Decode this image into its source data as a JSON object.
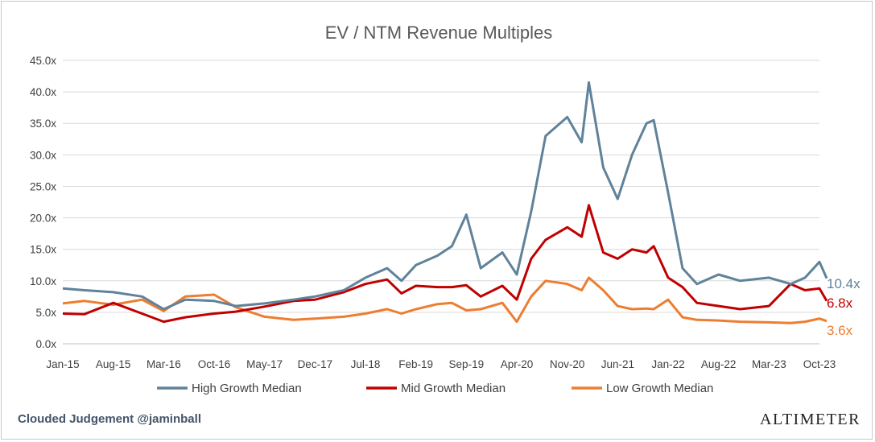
{
  "colors": {
    "high": "#60829a",
    "mid": "#c00000",
    "low": "#ed7d31",
    "grid": "#d9d9d9"
  },
  "footer": {
    "source": "Clouded Judgement @jaminball",
    "brand": "Altimeter"
  },
  "chart_data": {
    "type": "line",
    "title": "EV / NTM Revenue Multiples",
    "xlabel": "",
    "ylabel": "",
    "ylim": [
      0,
      45
    ],
    "y_ticks": [
      "0.0x",
      "5.0x",
      "10.0x",
      "15.0x",
      "20.0x",
      "25.0x",
      "30.0x",
      "35.0x",
      "40.0x",
      "45.0x"
    ],
    "x_ticks": [
      "Jan-15",
      "Aug-15",
      "Mar-16",
      "Oct-16",
      "May-17",
      "Dec-17",
      "Jul-18",
      "Feb-19",
      "Sep-19",
      "Apr-20",
      "Nov-20",
      "Jun-21",
      "Jan-22",
      "Aug-22",
      "Mar-23",
      "Oct-23"
    ],
    "grid": "horizontal",
    "legend": "bottom",
    "x": [
      "Jan-15",
      "Apr-15",
      "Aug-15",
      "Dec-15",
      "Mar-16",
      "Jun-16",
      "Oct-16",
      "Jan-17",
      "May-17",
      "Sep-17",
      "Dec-17",
      "Apr-18",
      "Jul-18",
      "Oct-18",
      "Dec-18",
      "Feb-19",
      "May-19",
      "Jul-19",
      "Sep-19",
      "Nov-19",
      "Feb-20",
      "Apr-20",
      "Jun-20",
      "Aug-20",
      "Nov-20",
      "Jan-21",
      "Feb-21",
      "Apr-21",
      "Jun-21",
      "Aug-21",
      "Oct-21",
      "Nov-21",
      "Jan-22",
      "Mar-22",
      "May-22",
      "Aug-22",
      "Nov-22",
      "Mar-23",
      "Jun-23",
      "Aug-23",
      "Oct-23",
      "Nov-23"
    ],
    "series": [
      {
        "name": "High Growth Median",
        "end_label": "10.4x",
        "values": [
          8.8,
          8.5,
          8.2,
          7.5,
          5.5,
          7.0,
          6.8,
          6.0,
          6.4,
          7.0,
          7.5,
          8.5,
          10.5,
          12.0,
          10.0,
          12.5,
          14.0,
          15.5,
          20.5,
          12.0,
          14.5,
          11.0,
          21.0,
          33.0,
          36.0,
          32.0,
          41.5,
          28.0,
          23.0,
          30.0,
          35.0,
          35.5,
          24.0,
          12.0,
          9.5,
          11.0,
          10.0,
          10.5,
          9.5,
          10.5,
          13.0,
          10.4
        ]
      },
      {
        "name": "Mid Growth Median",
        "end_label": "6.8x",
        "values": [
          4.8,
          4.7,
          6.5,
          4.8,
          3.5,
          4.2,
          4.8,
          5.1,
          5.9,
          6.8,
          7.0,
          8.2,
          9.5,
          10.2,
          8.0,
          9.2,
          9.0,
          9.0,
          9.3,
          7.5,
          9.2,
          7.0,
          13.5,
          16.5,
          18.5,
          17.0,
          22.0,
          14.5,
          13.5,
          15.0,
          14.5,
          15.5,
          10.5,
          9.0,
          6.5,
          6.0,
          5.5,
          6.0,
          9.5,
          8.5,
          8.8,
          6.8
        ]
      },
      {
        "name": "Low Growth Median",
        "end_label": "3.6x",
        "values": [
          6.4,
          6.8,
          6.2,
          7.0,
          5.2,
          7.5,
          7.8,
          5.8,
          4.3,
          3.8,
          4.0,
          4.3,
          4.8,
          5.5,
          4.8,
          5.5,
          6.3,
          6.5,
          5.3,
          5.5,
          6.5,
          3.5,
          7.5,
          10.0,
          9.5,
          8.5,
          10.5,
          8.5,
          6.0,
          5.5,
          5.6,
          5.5,
          7.0,
          4.2,
          3.8,
          3.7,
          3.5,
          3.4,
          3.3,
          3.5,
          4.0,
          3.6
        ]
      }
    ]
  }
}
